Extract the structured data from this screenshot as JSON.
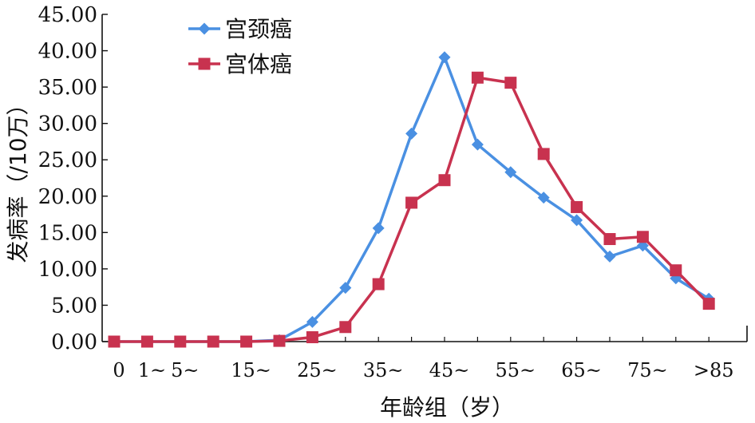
{
  "chart_data": {
    "type": "line",
    "title": "",
    "xlabel": "年龄组（岁）",
    "ylabel": "发病率（/10万）",
    "ylim": [
      0,
      45
    ],
    "yticks": [
      "0.00",
      "5.00",
      "10.00",
      "15.00",
      "20.00",
      "25.00",
      "30.00",
      "35.00",
      "40.00",
      "45.00"
    ],
    "x_tick_labels": [
      "0",
      "1~",
      "5~",
      "",
      "15~",
      "",
      "25~",
      "",
      "35~",
      "",
      "45~",
      "",
      "55~",
      "",
      "65~",
      "",
      "75~",
      "",
      ">85"
    ],
    "legend": "top-left",
    "grid": false,
    "series": [
      {
        "name": "宫颈癌",
        "color": "#4a90e2",
        "marker": "diamond",
        "values": [
          0,
          0,
          0,
          0,
          0,
          0.2,
          2.7,
          7.4,
          15.6,
          28.6,
          39.1,
          27.1,
          23.3,
          19.8,
          16.7,
          11.7,
          13.2,
          8.7,
          5.9
        ]
      },
      {
        "name": "宫体癌",
        "color": "#c8324f",
        "marker": "square",
        "values": [
          0,
          0,
          0,
          0,
          0,
          0.1,
          0.6,
          2.0,
          7.9,
          19.1,
          22.2,
          36.3,
          35.6,
          25.8,
          18.5,
          14.1,
          14.4,
          9.8,
          5.2
        ]
      }
    ]
  }
}
